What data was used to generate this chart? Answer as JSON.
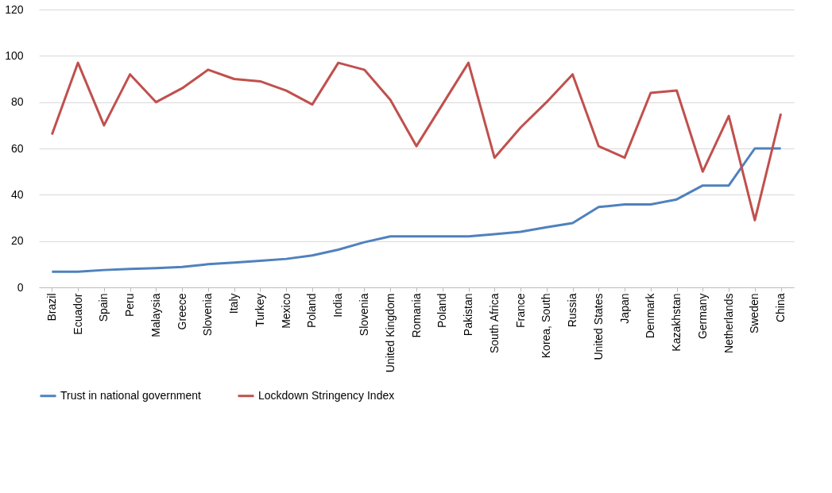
{
  "chart_data": {
    "type": "line",
    "categories": [
      "Brazil",
      "Ecuador",
      "Spain",
      "Peru",
      "Malaysia",
      "Greece",
      "Slovenia",
      "Italy",
      "Turkey",
      "Mexico",
      "Poland",
      "India",
      "Slovenia",
      "United Kingdom",
      "Romania",
      "Poland",
      "Pakistan",
      "South Africa",
      "France",
      "Korea, South",
      "Russia",
      "United States",
      "Japan",
      "Denmark",
      "Kazakhstan",
      "Germany",
      "Netherlands",
      "Sweden",
      "China"
    ],
    "series": [
      {
        "name": "Trust in national government",
        "color": "#4f81bd",
        "values": [
          6.8,
          6.8,
          7.5,
          8,
          8.3,
          8.8,
          10,
          10.7,
          11.5,
          12.3,
          13.8,
          16.3,
          19.5,
          22,
          22,
          22,
          22,
          23,
          24,
          26,
          27.8,
          34.7,
          35.8,
          35.8,
          38,
          44,
          44,
          60,
          60
        ]
      },
      {
        "name": "Lockdown Stringency Index",
        "color": "#c0504d",
        "values": [
          66,
          97,
          70,
          92,
          80,
          86,
          94,
          90,
          89,
          85,
          79,
          97,
          94,
          81,
          61,
          79,
          97,
          56,
          69,
          80,
          92,
          61,
          56,
          84,
          85,
          50,
          74,
          29,
          75
        ]
      }
    ],
    "ylim": [
      0,
      120
    ],
    "yticks": [
      0,
      20,
      40,
      60,
      80,
      100,
      120
    ],
    "grid": "y",
    "legend": "bottom",
    "marker": "none",
    "line_style": "solid"
  }
}
